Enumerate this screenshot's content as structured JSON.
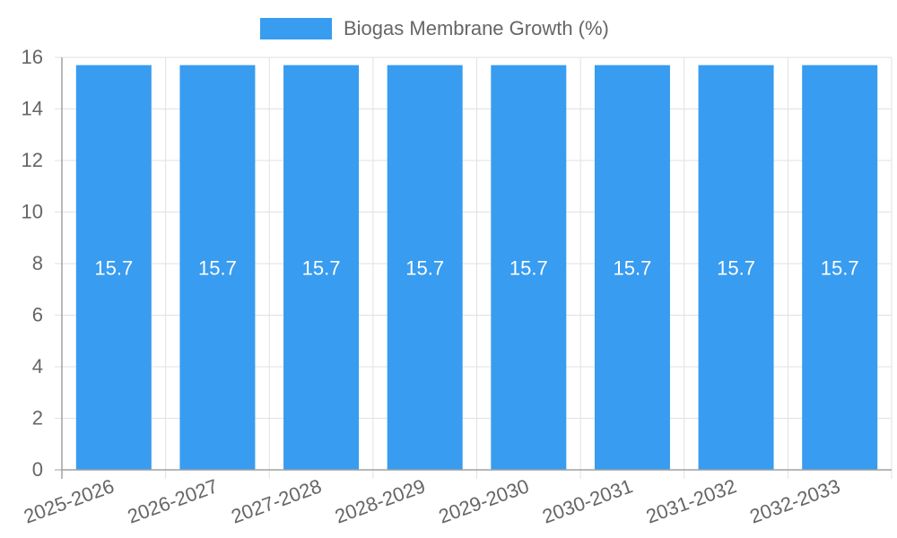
{
  "chart_data": {
    "type": "bar",
    "title": "",
    "categories": [
      "2025-2026",
      "2026-2027",
      "2027-2028",
      "2028-2029",
      "2029-2030",
      "2030-2031",
      "2031-2032",
      "2032-2033"
    ],
    "series": [
      {
        "name": "Biogas Membrane Growth (%)",
        "values": [
          15.7,
          15.7,
          15.7,
          15.7,
          15.7,
          15.7,
          15.7,
          15.7
        ],
        "color": "#389cf0"
      }
    ],
    "data_labels": [
      "15.7",
      "15.7",
      "15.7",
      "15.7",
      "15.7",
      "15.7",
      "15.7",
      "15.7"
    ],
    "xlabel": "",
    "ylabel": "",
    "ylim": [
      0,
      16
    ],
    "yticks": [
      0,
      2,
      4,
      6,
      8,
      10,
      12,
      14,
      16
    ],
    "grid": true,
    "legend_position": "top"
  },
  "legend": {
    "label": "Biogas Membrane Growth (%)"
  }
}
